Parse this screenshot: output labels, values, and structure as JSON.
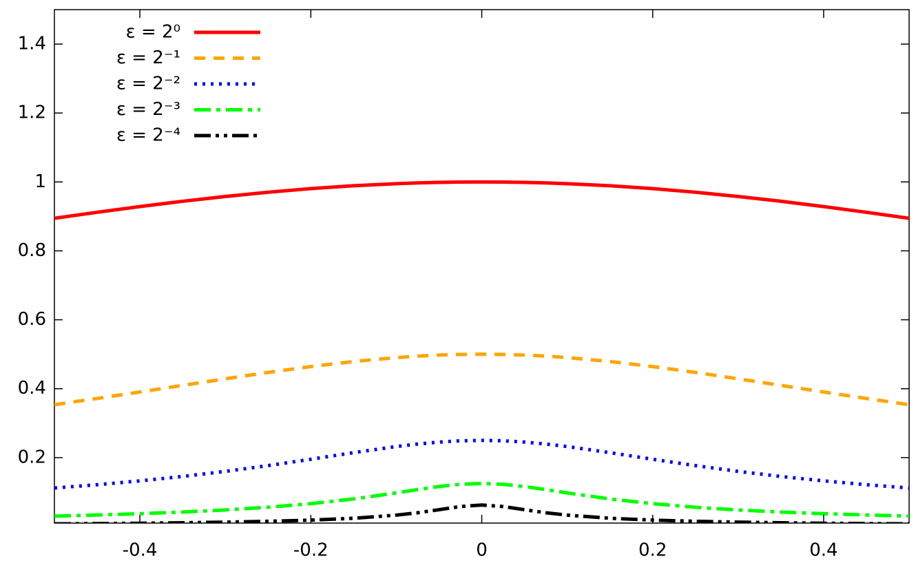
{
  "chart_data": {
    "type": "line",
    "x": [
      -0.5,
      -0.45,
      -0.4,
      -0.35,
      -0.3,
      -0.25,
      -0.2,
      -0.15,
      -0.1,
      -0.075,
      -0.05,
      -0.025,
      0,
      0.025,
      0.05,
      0.075,
      0.1,
      0.15,
      0.2,
      0.25,
      0.3,
      0.35,
      0.4,
      0.45,
      0.5
    ],
    "series": [
      {
        "name": "ε = 2⁰",
        "color": "#ff0000",
        "values": [
          0.8944,
          0.9119,
          0.9285,
          0.9439,
          0.9578,
          0.9701,
          0.9806,
          0.9889,
          0.995,
          0.9972,
          0.9988,
          0.9997,
          1,
          0.9997,
          0.9988,
          0.9972,
          0.995,
          0.9889,
          0.9806,
          0.9701,
          0.9578,
          0.9439,
          0.9285,
          0.9119,
          0.8944
        ]
      },
      {
        "name": "ε = 2⁻¹",
        "color": "#ffa500",
        "values": [
          0.3536,
          0.3716,
          0.3904,
          0.4096,
          0.4287,
          0.4472,
          0.4642,
          0.4789,
          0.4903,
          0.4945,
          0.4975,
          0.4994,
          0.5,
          0.4994,
          0.4975,
          0.4945,
          0.4903,
          0.4789,
          0.4642,
          0.4472,
          0.4287,
          0.4096,
          0.3904,
          0.3716,
          0.3536
        ]
      },
      {
        "name": "ε = 2⁻²",
        "color": "#0000ff",
        "values": [
          0.1118,
          0.1214,
          0.1325,
          0.1453,
          0.16,
          0.1768,
          0.1952,
          0.2144,
          0.2321,
          0.2395,
          0.2451,
          0.2488,
          0.25,
          0.2488,
          0.2451,
          0.2395,
          0.2321,
          0.2144,
          0.1952,
          0.1768,
          0.16,
          0.1453,
          0.1325,
          0.1214,
          0.1118
        ]
      },
      {
        "name": "ε = 2⁻³",
        "color": "#00ff00",
        "values": [
          0.0303,
          0.0335,
          0.0373,
          0.042,
          0.0481,
          0.0559,
          0.0663,
          0.08,
          0.0976,
          0.1072,
          0.1161,
          0.1226,
          0.125,
          0.1226,
          0.1161,
          0.1072,
          0.0976,
          0.08,
          0.0663,
          0.0559,
          0.0481,
          0.042,
          0.0373,
          0.0335,
          0.0303
        ]
      },
      {
        "name": "ε = 2⁻⁴",
        "color": "#000000",
        "values": [
          0.0078,
          0.0086,
          0.0096,
          0.011,
          0.0127,
          0.0152,
          0.0186,
          0.024,
          0.0331,
          0.04,
          0.0488,
          0.058,
          0.0625,
          0.058,
          0.0488,
          0.04,
          0.0331,
          0.024,
          0.0186,
          0.0152,
          0.0127,
          0.011,
          0.0096,
          0.0086,
          0.0078
        ]
      }
    ],
    "xlim": [
      -0.5,
      0.5
    ],
    "ylim": [
      0.01,
      1.5
    ],
    "xticks": [
      -0.4,
      -0.2,
      0,
      0.2,
      0.4
    ],
    "yticks": [
      0.2,
      0.4,
      0.6,
      0.8,
      1,
      1.2,
      1.4
    ],
    "grid": false,
    "legend": "top-left"
  }
}
